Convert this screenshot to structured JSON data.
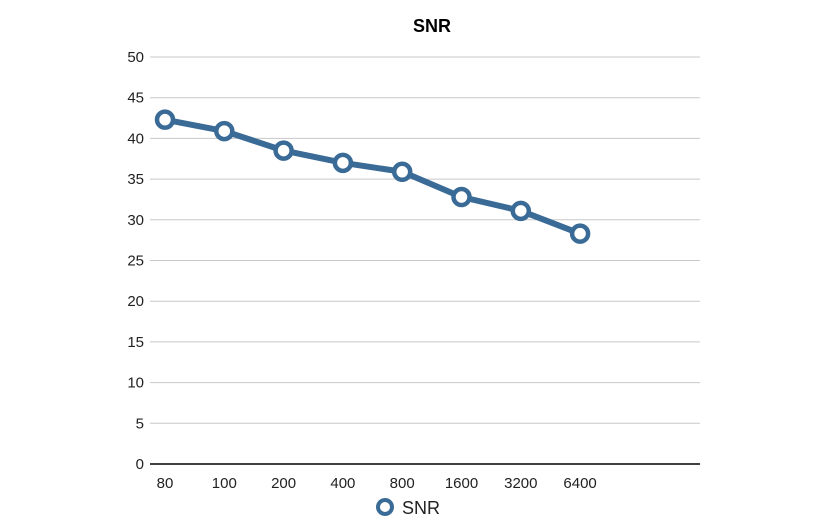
{
  "chart_data": {
    "type": "line",
    "title": "SNR",
    "xlabel": "",
    "ylabel": "",
    "categories": [
      "80",
      "100",
      "200",
      "400",
      "800",
      "1600",
      "3200",
      "6400"
    ],
    "series": [
      {
        "name": "SNR",
        "values": [
          42.3,
          40.9,
          38.5,
          37.0,
          35.9,
          32.8,
          31.1,
          28.3
        ]
      }
    ],
    "ylim": [
      0,
      50
    ],
    "yticks": [
      "0",
      "5",
      "10",
      "15",
      "20",
      "25",
      "30",
      "35",
      "40",
      "45",
      "50"
    ],
    "grid": true,
    "legend_position": "bottom-center",
    "colors": {
      "series_line": "#3a6a96",
      "marker_fill": "#ffffff",
      "grid": "#c8c8c8",
      "axis": "#000000"
    }
  }
}
